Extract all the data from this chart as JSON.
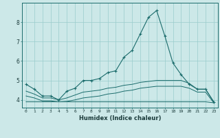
{
  "xlabel": "Humidex (Indice chaleur)",
  "ylabel": "",
  "background_color": "#cce8e8",
  "grid_color": "#99cccc",
  "line_color": "#1a6b6b",
  "xlim": [
    -0.5,
    23.5
  ],
  "ylim": [
    3.6,
    9.0
  ],
  "yticks": [
    4,
    5,
    6,
    7,
    8
  ],
  "xticks": [
    0,
    1,
    2,
    3,
    4,
    5,
    6,
    7,
    8,
    9,
    10,
    11,
    12,
    13,
    14,
    15,
    16,
    17,
    18,
    19,
    20,
    21,
    22,
    23
  ],
  "series": {
    "main": {
      "x": [
        0,
        1,
        2,
        3,
        4,
        5,
        6,
        7,
        8,
        9,
        10,
        11,
        12,
        13,
        14,
        15,
        16,
        17,
        18,
        19,
        20,
        21,
        22,
        23
      ],
      "y": [
        4.8,
        4.55,
        4.2,
        4.2,
        4.0,
        4.45,
        4.6,
        5.0,
        5.0,
        5.1,
        5.4,
        5.5,
        6.2,
        6.55,
        7.4,
        8.25,
        8.6,
        7.3,
        5.9,
        5.3,
        4.8,
        4.55,
        4.55,
        3.9
      ]
    },
    "line1": {
      "x": [
        0,
        1,
        2,
        3,
        4,
        5,
        6,
        7,
        8,
        9,
        10,
        11,
        12,
        13,
        14,
        15,
        16,
        17,
        18,
        19,
        20,
        21,
        22,
        23
      ],
      "y": [
        4.45,
        4.3,
        4.1,
        4.1,
        4.0,
        4.1,
        4.25,
        4.4,
        4.45,
        4.5,
        4.6,
        4.65,
        4.75,
        4.8,
        4.9,
        4.95,
        5.0,
        5.0,
        5.0,
        5.0,
        4.85,
        4.55,
        4.55,
        3.9
      ]
    },
    "line2": {
      "x": [
        0,
        1,
        2,
        3,
        4,
        5,
        6,
        7,
        8,
        9,
        10,
        11,
        12,
        13,
        14,
        15,
        16,
        17,
        18,
        19,
        20,
        21,
        22,
        23
      ],
      "y": [
        4.2,
        4.1,
        3.95,
        3.95,
        3.9,
        3.92,
        4.0,
        4.1,
        4.15,
        4.2,
        4.3,
        4.35,
        4.45,
        4.5,
        4.6,
        4.65,
        4.7,
        4.7,
        4.7,
        4.7,
        4.6,
        4.4,
        4.4,
        3.85
      ]
    },
    "line3": {
      "x": [
        0,
        1,
        2,
        3,
        4,
        5,
        6,
        7,
        8,
        9,
        10,
        11,
        12,
        13,
        14,
        15,
        16,
        17,
        18,
        19,
        20,
        21,
        22,
        23
      ],
      "y": [
        3.9,
        3.9,
        3.9,
        3.9,
        3.9,
        3.9,
        3.9,
        3.9,
        3.9,
        3.9,
        3.9,
        3.9,
        3.9,
        3.9,
        3.9,
        3.9,
        3.9,
        3.9,
        3.9,
        3.9,
        3.9,
        3.9,
        3.9,
        3.85
      ]
    }
  }
}
